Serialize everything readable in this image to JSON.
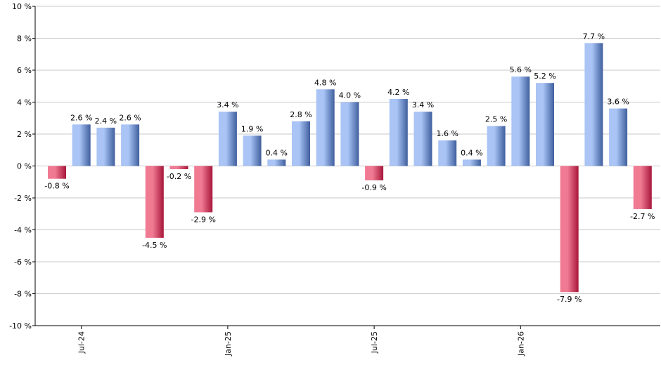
{
  "chart_data": {
    "type": "bar",
    "title": "",
    "xlabel": "",
    "ylabel": "",
    "ylim": [
      -10,
      10
    ],
    "yticks": [
      -10,
      -8,
      -6,
      -4,
      -2,
      0,
      2,
      4,
      6,
      8,
      10
    ],
    "ytick_suffix": " %",
    "grid": true,
    "legend": "none",
    "values": [
      -0.8,
      2.6,
      2.4,
      2.6,
      -4.5,
      -0.2,
      -2.9,
      3.4,
      1.9,
      0.4,
      2.8,
      4.8,
      4.0,
      -0.9,
      4.2,
      3.4,
      1.6,
      0.4,
      2.5,
      5.6,
      5.2,
      -7.9,
      7.7,
      3.6,
      -2.7
    ],
    "data_labels": [
      "-0.8 %",
      "2.6 %",
      "2.4 %",
      "2.6 %",
      "-4.5 %",
      "-0.2 %",
      "-2.9 %",
      "3.4 %",
      "1.9 %",
      "0.4 %",
      "2.8 %",
      "4.8 %",
      "4.0 %",
      "-0.9 %",
      "4.2 %",
      "3.4 %",
      "1.6 %",
      "0.4 %",
      "2.5 %",
      "5.6 %",
      "5.2 %",
      "-7.9 %",
      "7.7 %",
      "3.6 %",
      "-2.7 %"
    ],
    "x_tick_labels": [
      {
        "bar_index": 1,
        "label": "Jul-24"
      },
      {
        "bar_index": 7,
        "label": "Jan-25"
      },
      {
        "bar_index": 13,
        "label": "Jul-25"
      },
      {
        "bar_index": 19,
        "label": "Jan-26"
      }
    ],
    "colors": {
      "positive_light": "#a9c4f5",
      "positive_dark": "#3f5f9e",
      "negative_light": "#f07a92",
      "negative_dark": "#a8163a",
      "grid": "#c8c8c8",
      "axis": "#000000"
    }
  }
}
